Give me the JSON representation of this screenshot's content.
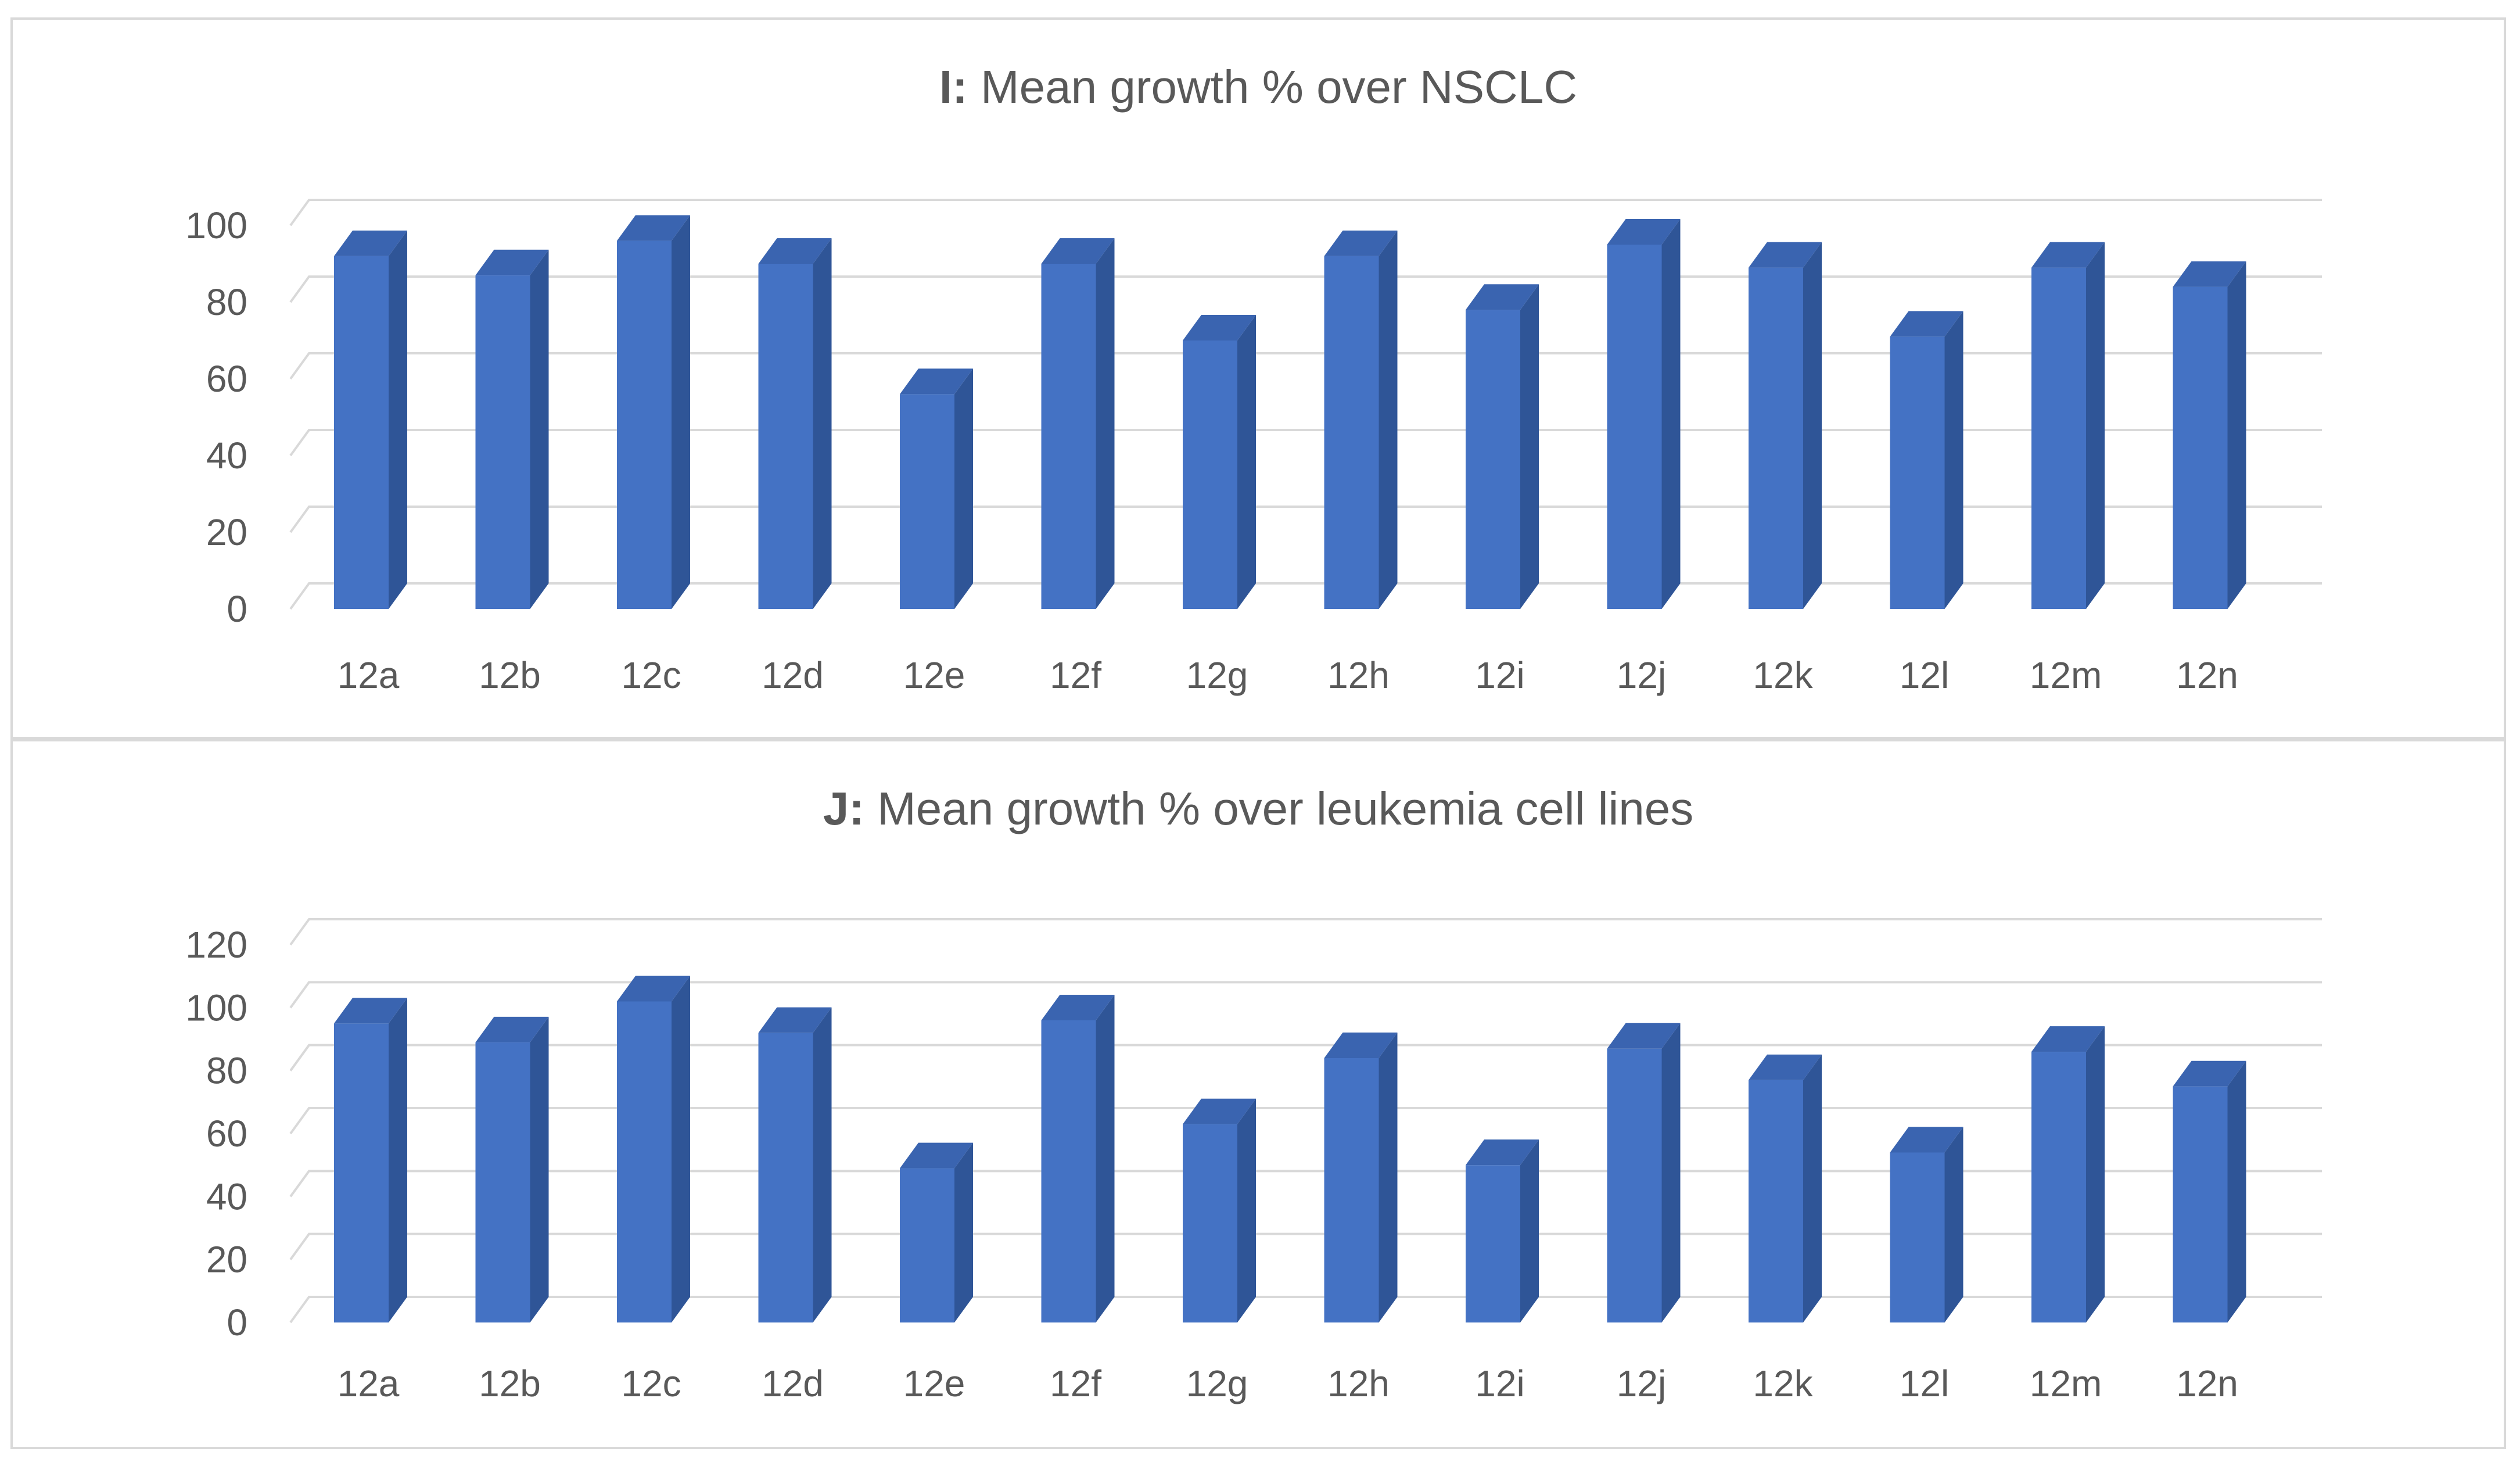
{
  "chart_data": [
    {
      "type": "bar",
      "title_prefix": "I:",
      "title": "Mean growth % over NSCLC",
      "categories": [
        "12a",
        "12b",
        "12c",
        "12d",
        "12e",
        "12f",
        "12g",
        "12h",
        "12i",
        "12j",
        "12k",
        "12l",
        "12m",
        "12n"
      ],
      "values": [
        92,
        87,
        96,
        90,
        56,
        90,
        70,
        92,
        78,
        95,
        89,
        71,
        89,
        84
      ],
      "ylim": [
        0,
        100
      ],
      "yticks": [
        "0",
        "20",
        "40",
        "60",
        "80",
        "100"
      ],
      "ytick_values": [
        0,
        20,
        40,
        60,
        80,
        100
      ],
      "grid": true,
      "style": "3d-column",
      "bar_color": "#4472c4",
      "bar_side_color": "#2f5597",
      "bar_top_color": "#3a64b0",
      "grid_color": "#d9d9d9"
    },
    {
      "type": "bar",
      "title_prefix": "J:",
      "title": "Mean growth % over leukemia cell lines",
      "categories": [
        "12a",
        "12b",
        "12c",
        "12d",
        "12e",
        "12f",
        "12g",
        "12h",
        "12i",
        "12j",
        "12k",
        "12l",
        "12m",
        "12n"
      ],
      "values": [
        95,
        89,
        102,
        92,
        49,
        96,
        63,
        84,
        50,
        87,
        77,
        54,
        86,
        75
      ],
      "ylim": [
        0,
        120
      ],
      "yticks": [
        "0",
        "20",
        "40",
        "60",
        "80",
        "100",
        "120"
      ],
      "ytick_values": [
        0,
        20,
        40,
        60,
        80,
        100,
        120
      ],
      "grid": true,
      "style": "3d-column",
      "bar_color": "#4472c4",
      "bar_side_color": "#2f5597",
      "bar_top_color": "#3a64b0",
      "grid_color": "#d9d9d9"
    }
  ]
}
